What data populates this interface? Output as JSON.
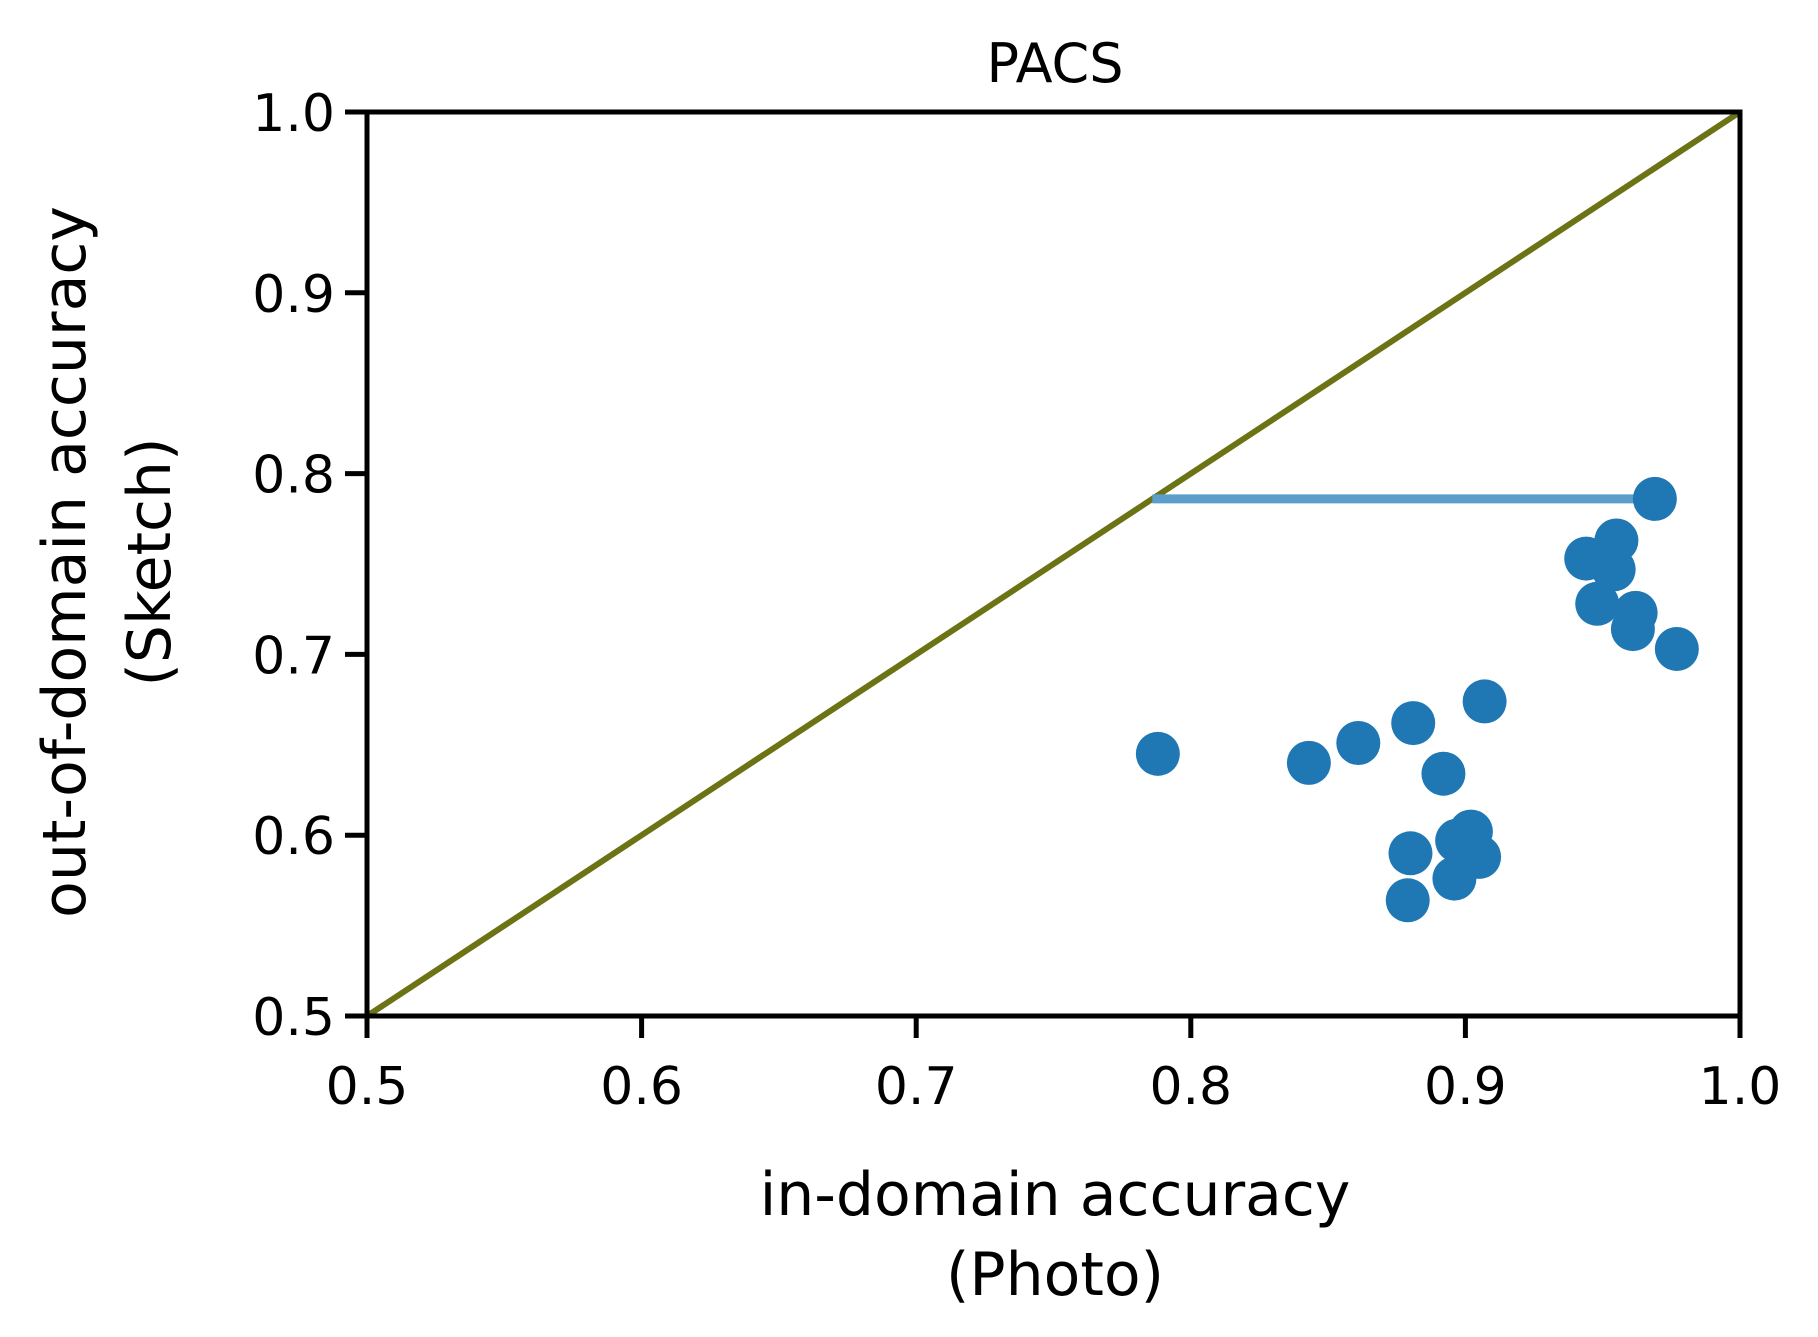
{
  "chart_data": {
    "type": "scatter",
    "title": "PACS",
    "xlabel": [
      "in-domain accuracy",
      "(Photo)"
    ],
    "ylabel": [
      "out-of-domain accuracy",
      "(Sketch)"
    ],
    "xlim": [
      0.5,
      1.0
    ],
    "ylim": [
      0.5,
      1.0
    ],
    "x_ticks": [
      "0.5",
      "0.6",
      "0.7",
      "0.8",
      "0.9",
      "1.0"
    ],
    "y_ticks": [
      "0.5",
      "0.6",
      "0.7",
      "0.8",
      "0.9",
      "1.0"
    ],
    "grid": false,
    "colors": {
      "points": "#1f77b4",
      "diagonal": "#6b7314",
      "gap_line": "#5b9ec9"
    },
    "diagonal": {
      "from": [
        0.5,
        0.5
      ],
      "to": [
        1.0,
        1.0
      ]
    },
    "gap_line": {
      "x_start": 0.786,
      "x_end": 0.969,
      "y": 0.786
    },
    "points": [
      {
        "x": 0.969,
        "y": 0.786
      },
      {
        "x": 0.955,
        "y": 0.763
      },
      {
        "x": 0.944,
        "y": 0.753
      },
      {
        "x": 0.954,
        "y": 0.747
      },
      {
        "x": 0.948,
        "y": 0.728
      },
      {
        "x": 0.962,
        "y": 0.723
      },
      {
        "x": 0.961,
        "y": 0.714
      },
      {
        "x": 0.977,
        "y": 0.703
      },
      {
        "x": 0.907,
        "y": 0.674
      },
      {
        "x": 0.881,
        "y": 0.662
      },
      {
        "x": 0.861,
        "y": 0.651
      },
      {
        "x": 0.788,
        "y": 0.645
      },
      {
        "x": 0.843,
        "y": 0.64
      },
      {
        "x": 0.892,
        "y": 0.634
      },
      {
        "x": 0.902,
        "y": 0.602
      },
      {
        "x": 0.897,
        "y": 0.597
      },
      {
        "x": 0.88,
        "y": 0.59
      },
      {
        "x": 0.905,
        "y": 0.588
      },
      {
        "x": 0.896,
        "y": 0.576
      },
      {
        "x": 0.879,
        "y": 0.564
      }
    ]
  }
}
